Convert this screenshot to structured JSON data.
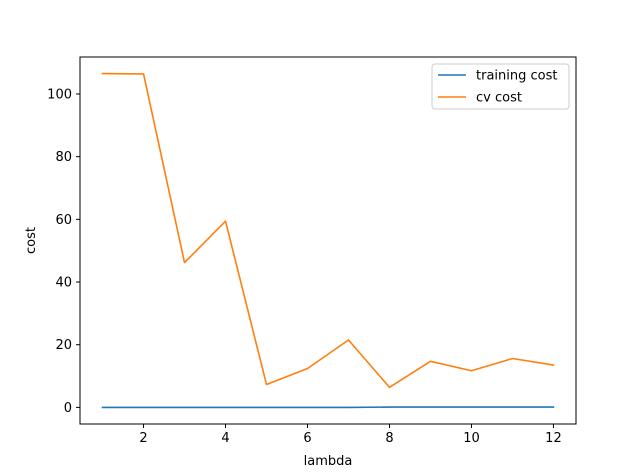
{
  "chart_data": {
    "type": "line",
    "title": "",
    "xlabel": "lambda",
    "ylabel": "cost",
    "xlim": [
      0.45,
      12.55
    ],
    "ylim": [
      -5.3,
      111.8
    ],
    "xticks": [
      2,
      4,
      6,
      8,
      10,
      12
    ],
    "yticks": [
      0,
      20,
      40,
      60,
      80,
      100
    ],
    "grid": false,
    "legend_position": "upper-right",
    "x": [
      1,
      2,
      3,
      4,
      5,
      6,
      7,
      8,
      9,
      10,
      11,
      12
    ],
    "series": [
      {
        "name": "training cost",
        "color": "#1f77b4",
        "values": [
          0.0,
          0.0,
          0.0,
          0.0,
          0.0,
          0.0,
          0.0,
          0.1,
          0.1,
          0.1,
          0.1,
          0.1
        ]
      },
      {
        "name": "cv cost",
        "color": "#ff7f0e",
        "values": [
          106.5,
          106.4,
          46.2,
          59.4,
          7.3,
          12.4,
          21.5,
          6.4,
          14.7,
          11.7,
          15.6,
          13.5
        ]
      }
    ]
  }
}
